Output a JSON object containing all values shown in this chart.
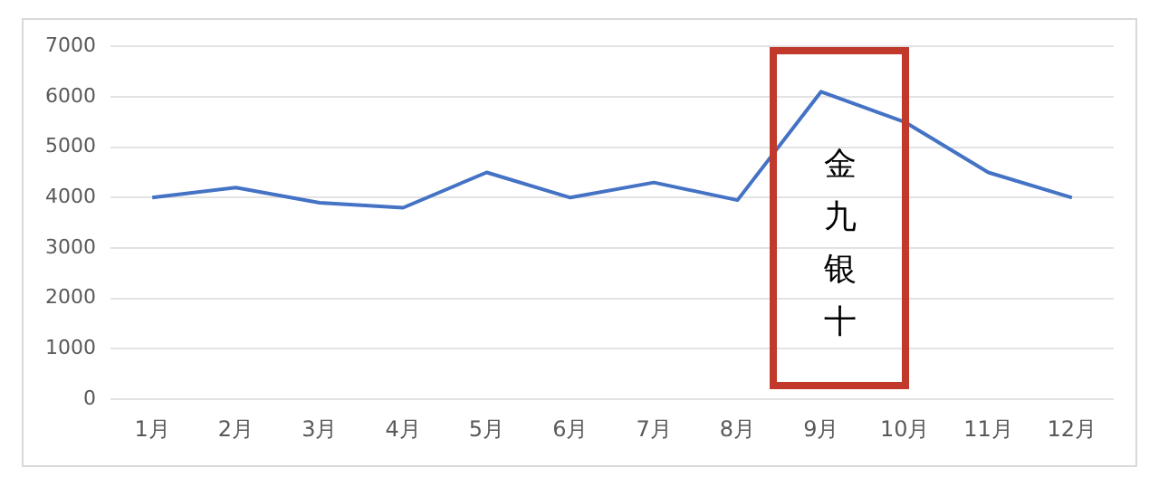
{
  "chart_data": {
    "type": "line",
    "categories": [
      "1月",
      "2月",
      "3月",
      "4月",
      "5月",
      "6月",
      "7月",
      "8月",
      "9月",
      "10月",
      "11月",
      "12月"
    ],
    "series": [
      {
        "color": "#4472c4",
        "values": [
          4000,
          4200,
          3900,
          3800,
          4500,
          4000,
          4300,
          3950,
          6100,
          5500,
          4500,
          4000
        ]
      }
    ],
    "ylim": [
      0,
      7000
    ],
    "yticks": [
      0,
      1000,
      2000,
      3000,
      4000,
      5000,
      6000,
      7000
    ],
    "grid": "y",
    "legend": false,
    "marker": "none",
    "line_style": "solid",
    "annotations": [
      "金九银十"
    ]
  }
}
